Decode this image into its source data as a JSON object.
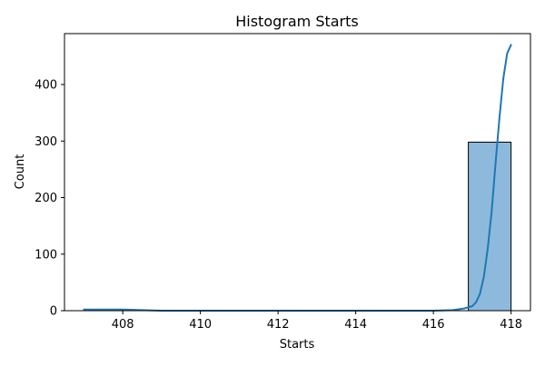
{
  "chart_data": {
    "type": "bar",
    "title": "Histogram Starts",
    "xlabel": "Starts",
    "ylabel": "Count",
    "xlim": [
      406.5,
      418.5
    ],
    "ylim": [
      0,
      490
    ],
    "xticks": [
      408,
      410,
      412,
      414,
      416,
      418
    ],
    "yticks": [
      0,
      100,
      200,
      300,
      400
    ],
    "bins": [
      {
        "x0": 407.0,
        "x1": 407.9,
        "count": 1
      },
      {
        "x0": 407.9,
        "x1": 408.8,
        "count": 0
      },
      {
        "x0": 408.8,
        "x1": 409.7,
        "count": 0
      },
      {
        "x0": 409.7,
        "x1": 410.6,
        "count": 0
      },
      {
        "x0": 410.6,
        "x1": 411.5,
        "count": 0
      },
      {
        "x0": 411.5,
        "x1": 412.4,
        "count": 0
      },
      {
        "x0": 412.4,
        "x1": 413.3,
        "count": 0
      },
      {
        "x0": 413.3,
        "x1": 414.2,
        "count": 0
      },
      {
        "x0": 414.2,
        "x1": 415.1,
        "count": 0
      },
      {
        "x0": 415.1,
        "x1": 416.0,
        "count": 0
      },
      {
        "x0": 416.0,
        "x1": 416.9,
        "count": 0
      },
      {
        "x0": 416.9,
        "x1": 418.0,
        "count": 298
      }
    ],
    "kde": {
      "x": [
        407.0,
        407.5,
        408.0,
        408.5,
        409.0,
        410.0,
        411.0,
        412.0,
        413.0,
        414.0,
        415.0,
        416.0,
        416.5,
        416.8,
        417.0,
        417.1,
        417.2,
        417.3,
        417.4,
        417.5,
        417.6,
        417.7,
        417.8,
        417.9,
        418.0
      ],
      "y": [
        2,
        2,
        2,
        1,
        0,
        0,
        0,
        0,
        0,
        0,
        0,
        0,
        1,
        4,
        8,
        15,
        30,
        60,
        110,
        175,
        260,
        340,
        410,
        455,
        470
      ]
    },
    "colors": {
      "bar_fill": "#8dbadc",
      "bar_edge": "#000000",
      "kde_line": "#1f77b4"
    },
    "grid": false,
    "legend": "none"
  }
}
